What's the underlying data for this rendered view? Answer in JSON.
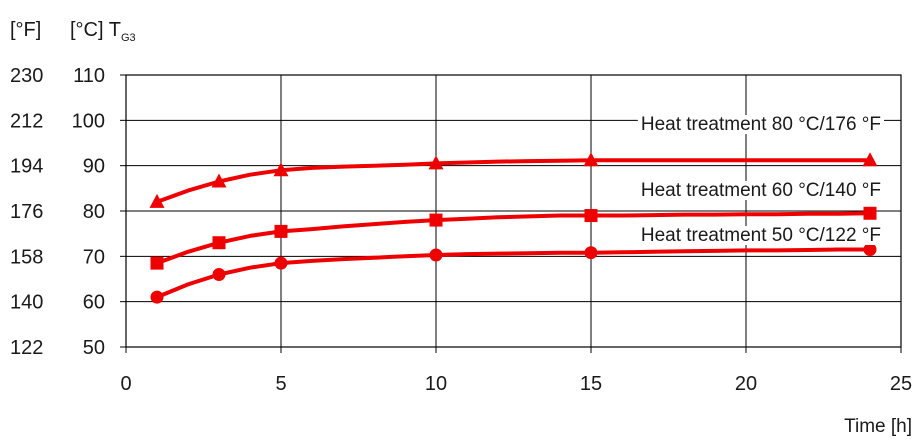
{
  "chart_data": {
    "type": "line",
    "ylabel_f": "[°F]",
    "ylabel_c_prefix": "[°C] T",
    "ylabel_c_sub": "G3",
    "xlabel": "Time [h]",
    "xlim": [
      0,
      25
    ],
    "ylim": [
      50,
      110
    ],
    "x_ticks": [
      "0",
      "5",
      "10",
      "15",
      "20",
      "25"
    ],
    "y_ticks_c": [
      "110",
      "100",
      "90",
      "80",
      "70",
      "60",
      "50"
    ],
    "y_ticks_f": [
      "230",
      "212",
      "194",
      "176",
      "158",
      "140",
      "122"
    ],
    "grid": true,
    "series": [
      {
        "name": "Heat treatment 80 °C/176 °F",
        "marker": "triangle",
        "x": [
          1,
          3,
          5,
          10,
          15,
          24
        ],
        "y": [
          82,
          86.5,
          89,
          90.5,
          91.2,
          91.2
        ],
        "curve_x": [
          1,
          2,
          3,
          4,
          5,
          6,
          7,
          8,
          9,
          10,
          11,
          12,
          13,
          14,
          15,
          16,
          17,
          18,
          19,
          20,
          21,
          22,
          23,
          24
        ],
        "curve_y": [
          82,
          84.5,
          86.5,
          88,
          89,
          89.5,
          89.8,
          90,
          90.2,
          90.5,
          90.7,
          90.9,
          91,
          91.1,
          91.2,
          91.2,
          91.2,
          91.2,
          91.2,
          91.2,
          91.2,
          91.2,
          91.2,
          91.2
        ]
      },
      {
        "name": "Heat treatment 60 °C/140 °F",
        "marker": "square",
        "x": [
          1,
          3,
          5,
          10,
          15,
          24
        ],
        "y": [
          68.5,
          73,
          75.5,
          78,
          79,
          79.5
        ],
        "curve_x": [
          1,
          2,
          3,
          4,
          5,
          6,
          7,
          8,
          9,
          10,
          11,
          12,
          13,
          14,
          15,
          16,
          17,
          18,
          19,
          20,
          21,
          22,
          23,
          24
        ],
        "curve_y": [
          68.5,
          71,
          73,
          74.5,
          75.5,
          76,
          76.6,
          77.1,
          77.6,
          78,
          78.3,
          78.6,
          78.8,
          79,
          79,
          79,
          79.1,
          79.2,
          79.2,
          79.3,
          79.3,
          79.4,
          79.4,
          79.5
        ]
      },
      {
        "name": "Heat treatment 50 °C/122 °F",
        "marker": "circle",
        "x": [
          1,
          3,
          5,
          10,
          15,
          24
        ],
        "y": [
          61,
          66,
          68.5,
          70.3,
          70.8,
          71.5
        ],
        "curve_x": [
          1,
          2,
          3,
          4,
          5,
          6,
          7,
          8,
          9,
          10,
          11,
          12,
          13,
          14,
          15,
          16,
          17,
          18,
          19,
          20,
          21,
          22,
          23,
          24
        ],
        "curve_y": [
          61,
          63.8,
          66,
          67.5,
          68.5,
          69,
          69.4,
          69.7,
          70,
          70.3,
          70.5,
          70.6,
          70.7,
          70.8,
          70.8,
          70.9,
          71,
          71.1,
          71.2,
          71.3,
          71.3,
          71.4,
          71.5,
          71.5
        ]
      }
    ],
    "colors": {
      "series": "#ee0000",
      "grid": "#000000",
      "background": "#ffffff"
    }
  }
}
